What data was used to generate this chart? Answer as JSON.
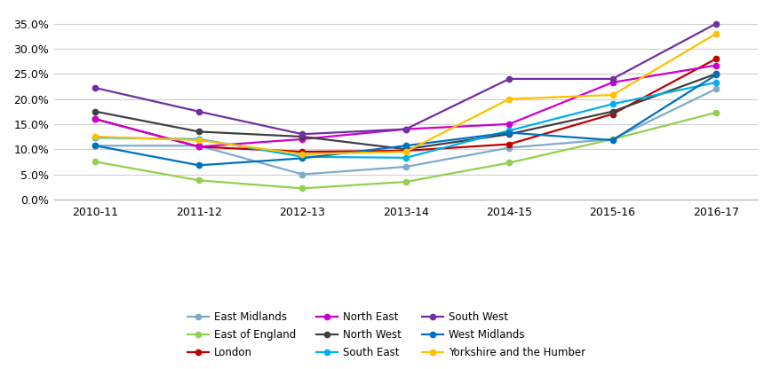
{
  "years": [
    "2010-11",
    "2011-12",
    "2012-13",
    "2013-14",
    "2014-15",
    "2015-16",
    "2016-17"
  ],
  "series": {
    "East Midlands": {
      "values": [
        0.107,
        0.107,
        0.05,
        0.065,
        0.103,
        0.12,
        0.22
      ],
      "color": "#7faacc",
      "marker": "o"
    },
    "East of England": {
      "values": [
        0.075,
        0.038,
        0.022,
        0.035,
        0.073,
        0.12,
        0.173
      ],
      "color": "#92d050",
      "marker": "o"
    },
    "London": {
      "values": [
        0.16,
        0.105,
        0.095,
        0.097,
        0.11,
        0.17,
        0.28
      ],
      "color": "#c00000",
      "marker": "o"
    },
    "North East": {
      "values": [
        0.16,
        0.105,
        0.12,
        0.14,
        0.15,
        0.233,
        0.267
      ],
      "color": "#cc00cc",
      "marker": "o"
    },
    "North West": {
      "values": [
        0.175,
        0.135,
        0.125,
        0.1,
        0.13,
        0.175,
        0.25
      ],
      "color": "#404040",
      "marker": "o"
    },
    "South East": {
      "values": [
        0.123,
        0.12,
        0.085,
        0.083,
        0.137,
        0.19,
        0.233
      ],
      "color": "#00b0f0",
      "marker": "o"
    },
    "South West": {
      "values": [
        0.222,
        0.175,
        0.13,
        0.14,
        0.24,
        0.24,
        0.35
      ],
      "color": "#7030a0",
      "marker": "o"
    },
    "West Midlands": {
      "values": [
        0.107,
        0.068,
        0.082,
        0.107,
        0.133,
        0.118,
        0.248
      ],
      "color": "#0070c0",
      "marker": "o"
    },
    "Yorkshire and the Humber": {
      "values": [
        0.125,
        0.118,
        0.09,
        0.095,
        0.2,
        0.208,
        0.33
      ],
      "color": "#ffc000",
      "marker": "o"
    }
  },
  "ylim": [
    0.0,
    0.375
  ],
  "yticks": [
    0.0,
    0.05,
    0.1,
    0.15,
    0.2,
    0.25,
    0.3,
    0.35
  ],
  "ytick_labels": [
    "0.0%",
    "5.0%",
    "10.0%",
    "15.0%",
    "20.0%",
    "25.0%",
    "30.0%",
    "35.0%"
  ],
  "legend_order": [
    "East Midlands",
    "East of England",
    "London",
    "North East",
    "North West",
    "South East",
    "South West",
    "West Midlands",
    "Yorkshire and the Humber"
  ],
  "legend_ncol": 3
}
